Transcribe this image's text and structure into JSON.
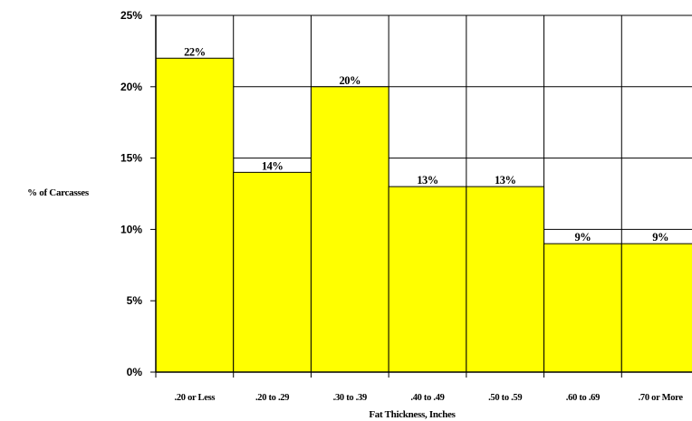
{
  "chart_data": {
    "type": "bar",
    "title": "",
    "xlabel": "Fat Thickness, Inches",
    "ylabel": "% of Carcasses",
    "categories": [
      ".20 or Less",
      ".20 to .29",
      ".30 to .39",
      ".40 to .49",
      ".50 to .59",
      ".60 to .69",
      ".70 or More"
    ],
    "values": [
      22,
      14,
      20,
      13,
      13,
      9,
      9
    ],
    "data_labels": [
      "22%",
      "14%",
      "20%",
      "13%",
      "13%",
      "9%",
      "9%"
    ],
    "ylim": [
      0,
      25
    ],
    "yticks": [
      0,
      5,
      10,
      15,
      20,
      25
    ],
    "ytick_labels": [
      "0%",
      "5%",
      "10%",
      "15%",
      "20%",
      "25%"
    ],
    "grid": true,
    "bar_color": "#ffff00",
    "bar_edge_color": "#000000"
  }
}
